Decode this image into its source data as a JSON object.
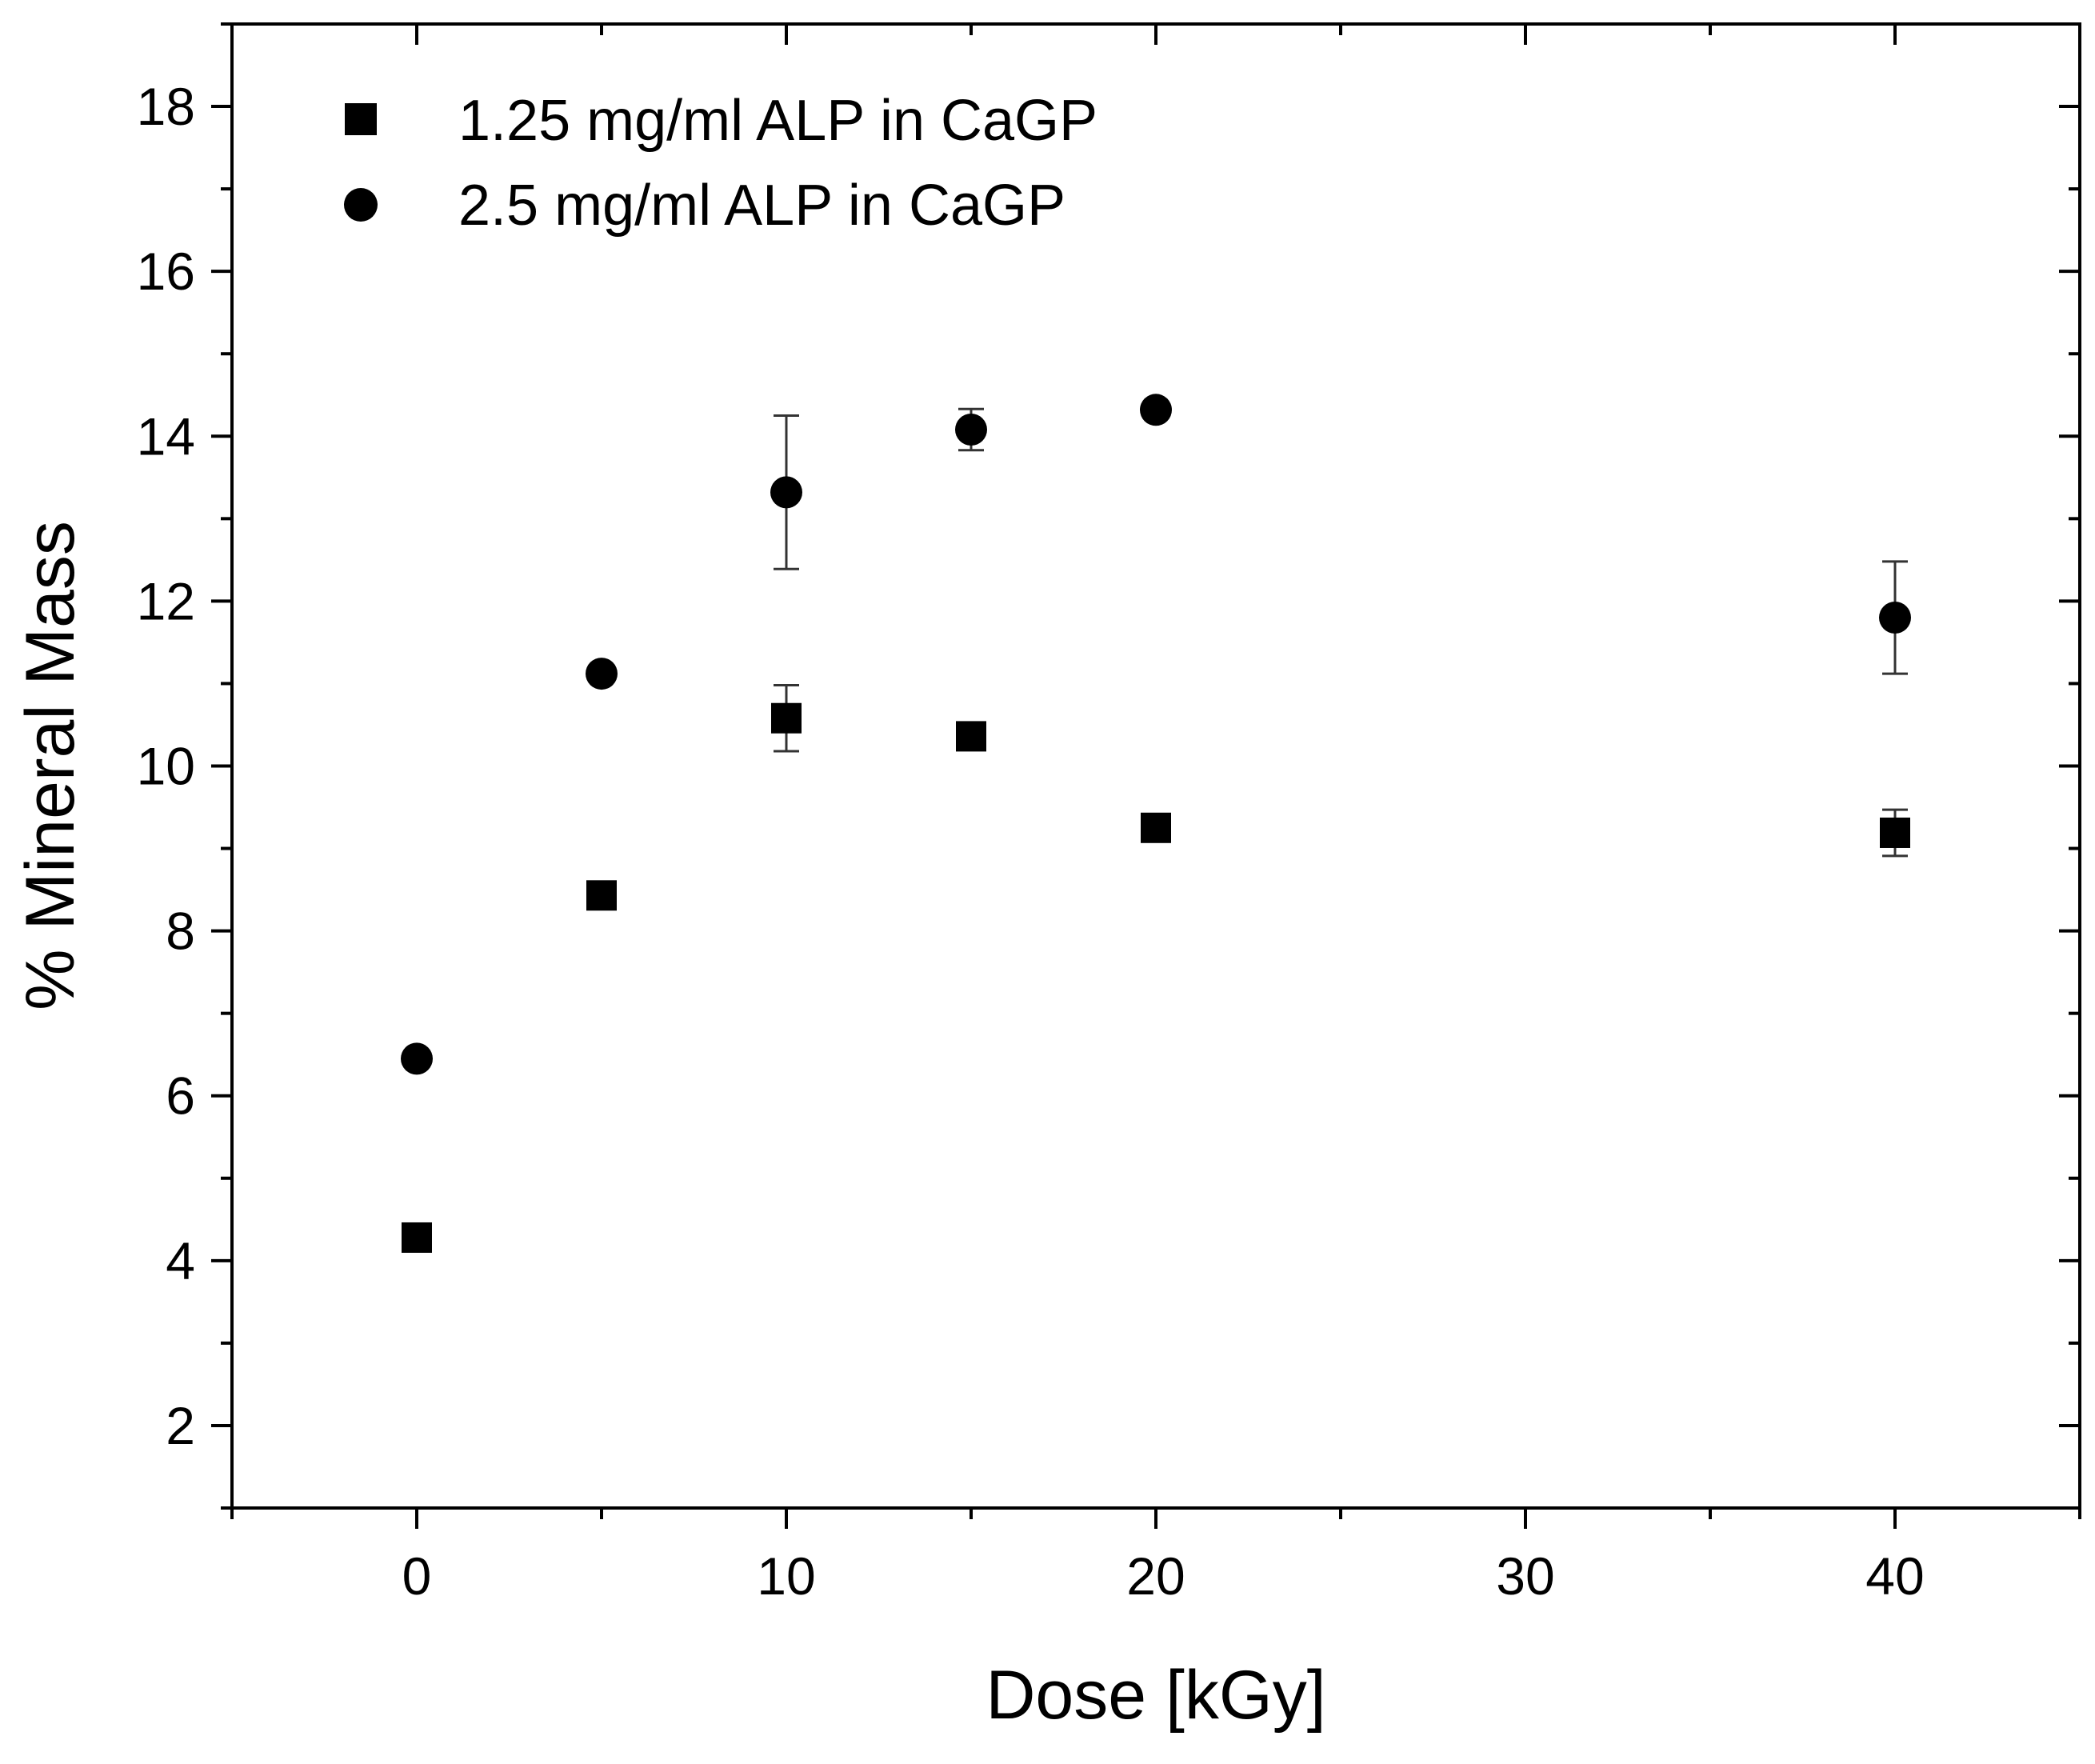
{
  "chart_data": {
    "type": "scatter",
    "title": "",
    "xlabel": "Dose [kGy]",
    "ylabel": "% Mineral Mass",
    "xlim": [
      -5,
      45
    ],
    "ylim": [
      1,
      19
    ],
    "x_ticks": [
      0,
      10,
      20,
      30,
      40
    ],
    "x_minor_ticks": [
      -5,
      5,
      15,
      25,
      35,
      45
    ],
    "y_ticks": [
      2,
      4,
      6,
      8,
      10,
      12,
      14,
      16,
      18
    ],
    "y_minor_ticks": [
      1,
      3,
      5,
      7,
      9,
      11,
      13,
      15,
      17,
      19
    ],
    "grid": false,
    "legend_position": "top-left",
    "series": [
      {
        "name": "1.25 mg/ml ALP in CaGP",
        "marker": "square",
        "color": "#000000",
        "x": [
          0,
          5,
          10,
          15,
          20,
          40
        ],
        "y": [
          4.28,
          8.43,
          10.58,
          10.36,
          9.25,
          9.19
        ],
        "err": [
          0.0,
          0.0,
          0.4,
          0.0,
          0.0,
          0.28
        ]
      },
      {
        "name": "2.5 mg/ml ALP in CaGP",
        "marker": "circle",
        "color": "#000000",
        "x": [
          0,
          5,
          10,
          15,
          20,
          40
        ],
        "y": [
          6.45,
          11.12,
          13.32,
          14.08,
          14.32,
          11.8
        ],
        "err": [
          0.0,
          0.0,
          0.93,
          0.25,
          0.0,
          0.68
        ]
      }
    ]
  }
}
